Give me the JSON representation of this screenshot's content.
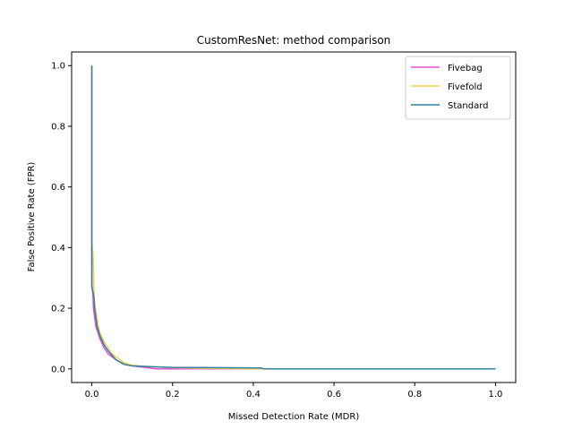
{
  "chart_data": {
    "type": "line",
    "title": "CustomResNet: method comparison",
    "xlabel": "Missed Detection Rate (MDR)",
    "ylabel": "False Positive Rate (FPR)",
    "xlim": [
      -0.05,
      1.05
    ],
    "ylim": [
      -0.045,
      1.045
    ],
    "xticks": [
      "0.0",
      "0.2",
      "0.4",
      "0.6",
      "0.8",
      "1.0"
    ],
    "yticks": [
      "0.0",
      "0.2",
      "0.4",
      "0.6",
      "0.8",
      "1.0"
    ],
    "grid": false,
    "legend_position": "top-right",
    "series": [
      {
        "name": "Fivebag",
        "color": "#e14fd9",
        "points": [
          [
            0.0,
            1.0
          ],
          [
            0.0,
            0.8
          ],
          [
            0.0,
            0.6
          ],
          [
            0.0,
            0.4
          ],
          [
            0.0,
            0.28
          ],
          [
            0.003,
            0.24
          ],
          [
            0.004,
            0.2
          ],
          [
            0.007,
            0.17
          ],
          [
            0.01,
            0.14
          ],
          [
            0.015,
            0.12
          ],
          [
            0.02,
            0.1
          ],
          [
            0.03,
            0.07
          ],
          [
            0.04,
            0.05
          ],
          [
            0.05,
            0.04
          ],
          [
            0.06,
            0.03
          ],
          [
            0.08,
            0.015
          ],
          [
            0.1,
            0.01
          ],
          [
            0.13,
            0.005
          ],
          [
            0.16,
            0.0
          ],
          [
            0.2,
            0.0
          ],
          [
            0.3,
            0.0
          ],
          [
            0.5,
            0.0
          ],
          [
            1.0,
            0.0
          ]
        ]
      },
      {
        "name": "Fivefold",
        "color": "#f0d24e",
        "points": [
          [
            0.0,
            1.0
          ],
          [
            0.0,
            0.8
          ],
          [
            0.0,
            0.6
          ],
          [
            0.0,
            0.42
          ],
          [
            0.003,
            0.38
          ],
          [
            0.004,
            0.34
          ],
          [
            0.005,
            0.27
          ],
          [
            0.006,
            0.23
          ],
          [
            0.01,
            0.19
          ],
          [
            0.015,
            0.15
          ],
          [
            0.02,
            0.12
          ],
          [
            0.03,
            0.09
          ],
          [
            0.04,
            0.07
          ],
          [
            0.05,
            0.05
          ],
          [
            0.06,
            0.04
          ],
          [
            0.08,
            0.02
          ],
          [
            0.1,
            0.012
          ],
          [
            0.13,
            0.008
          ],
          [
            0.2,
            0.004
          ],
          [
            0.27,
            0.002
          ],
          [
            0.42,
            0.0
          ],
          [
            0.6,
            0.0
          ],
          [
            1.0,
            0.0
          ]
        ]
      },
      {
        "name": "Standard",
        "color": "#2e82a0",
        "points": [
          [
            0.0,
            1.0
          ],
          [
            0.0,
            0.8
          ],
          [
            0.0,
            0.6
          ],
          [
            0.0,
            0.4
          ],
          [
            0.0,
            0.27
          ],
          [
            0.005,
            0.24
          ],
          [
            0.007,
            0.2
          ],
          [
            0.01,
            0.17
          ],
          [
            0.013,
            0.14
          ],
          [
            0.02,
            0.11
          ],
          [
            0.03,
            0.08
          ],
          [
            0.04,
            0.06
          ],
          [
            0.05,
            0.045
          ],
          [
            0.06,
            0.03
          ],
          [
            0.08,
            0.015
          ],
          [
            0.1,
            0.01
          ],
          [
            0.15,
            0.007
          ],
          [
            0.2,
            0.005
          ],
          [
            0.3,
            0.004
          ],
          [
            0.42,
            0.003
          ],
          [
            0.425,
            0.0
          ],
          [
            0.7,
            0.0
          ],
          [
            1.0,
            0.0
          ]
        ]
      }
    ]
  }
}
